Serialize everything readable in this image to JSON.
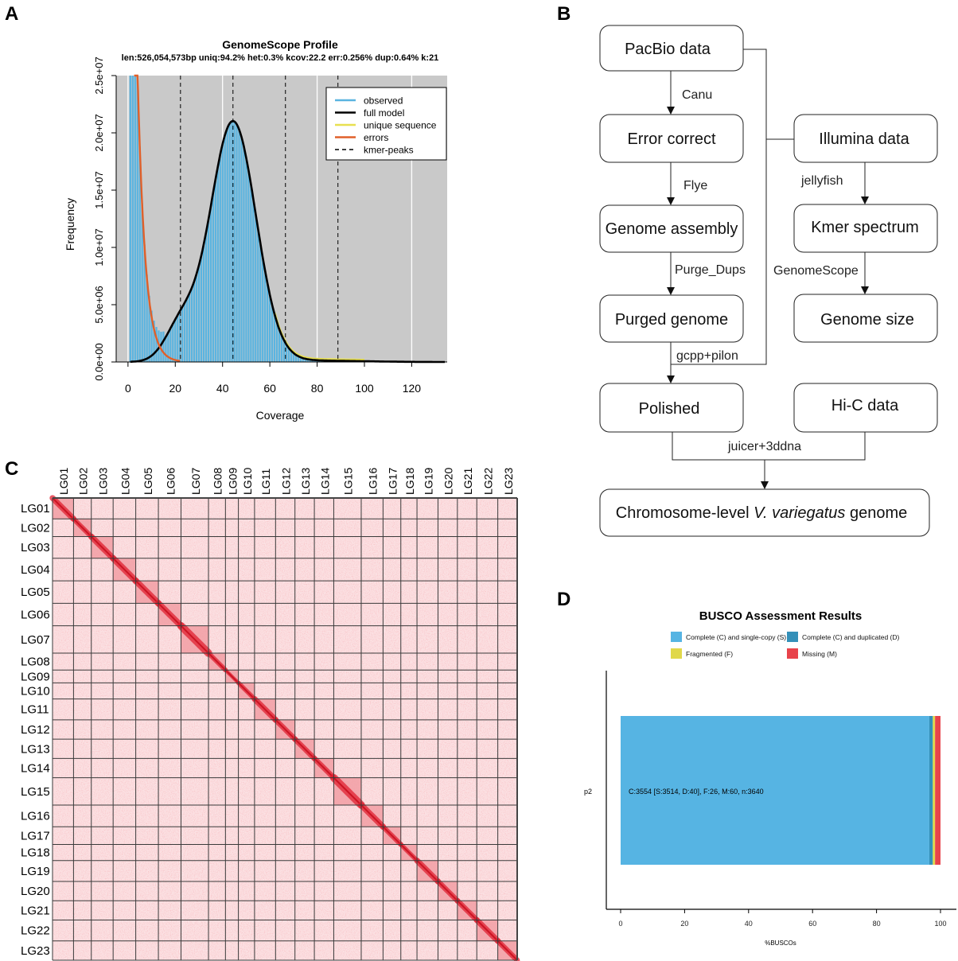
{
  "panels": {
    "a": {
      "label": "A"
    },
    "b": {
      "label": "B"
    },
    "c": {
      "label": "C"
    },
    "d": {
      "label": "D"
    }
  },
  "chart_data": [
    {
      "id": "genomescope",
      "type": "bar",
      "title": "GenomeScope Profile",
      "subtitle": "len:526,054,573bp uniq:94.2%  het:0.3% kcov:22.2 err:0.256%  dup:0.64%  k:21",
      "xlabel": "Coverage",
      "ylabel": "Frequency",
      "xlim": [
        -5,
        135
      ],
      "ylim": [
        0,
        25000000
      ],
      "xticks": [
        0,
        20,
        40,
        60,
        80,
        100,
        120
      ],
      "xtick_labels": [
        "0",
        "20",
        "40",
        "60",
        "80",
        "100",
        "120"
      ],
      "yticks": [
        0,
        5000000,
        10000000,
        15000000,
        20000000,
        25000000
      ],
      "ytick_labels": [
        "0.0e+00",
        "5.0e+06",
        "1.0e+07",
        "1.5e+07",
        "2.0e+07",
        "2.5e+07"
      ],
      "kmer_peaks": [
        22.2,
        44.4,
        66.6,
        88.8
      ],
      "legend": {
        "position": "top-right",
        "items": [
          {
            "label": "observed",
            "color": "#5ab4e0",
            "style": "solid"
          },
          {
            "label": "full model",
            "color": "#000000",
            "style": "solid"
          },
          {
            "label": "unique sequence",
            "color": "#e8e050",
            "style": "solid"
          },
          {
            "label": "errors",
            "color": "#e0602a",
            "style": "solid"
          },
          {
            "label": "kmer-peaks",
            "color": "#000000",
            "style": "dashed"
          }
        ]
      },
      "observed_color": "#5ab4e0",
      "background_color": "#c9c9c9"
    },
    {
      "id": "busco",
      "type": "bar",
      "orientation": "horizontal",
      "stacked": true,
      "title": "BUSCO Assessment Results",
      "xlabel": "%BUSCOs",
      "xlim": [
        0,
        100
      ],
      "xticks": [
        0,
        20,
        40,
        60,
        80,
        100
      ],
      "xtick_labels": [
        "0",
        "20",
        "40",
        "60",
        "80",
        "100"
      ],
      "categories": [
        "p2"
      ],
      "series": [
        {
          "name": "Complete (C) and single-copy (S)",
          "color": "#56b4e3",
          "values": [
            96.5
          ]
        },
        {
          "name": "Complete (C) and duplicated (D)",
          "color": "#3490b9",
          "values": [
            1.1
          ]
        },
        {
          "name": "Fragmented (F)",
          "color": "#e0d84a",
          "values": [
            0.7
          ]
        },
        {
          "name": "Missing (M)",
          "color": "#e8434b",
          "values": [
            1.7
          ]
        }
      ],
      "bar_annotation": "C:3554 [S:3514, D:40], F:26, M:60, n:3640"
    },
    {
      "id": "hic",
      "type": "heatmap",
      "chromosomes": [
        "LG01",
        "LG02",
        "LG03",
        "LG04",
        "LG05",
        "LG06",
        "LG07",
        "LG08",
        "LG09",
        "LG10",
        "LG11",
        "LG12",
        "LG13",
        "LG14",
        "LG15",
        "LG16",
        "LG17",
        "LG18",
        "LG19",
        "LG20",
        "LG21",
        "LG22",
        "LG23"
      ],
      "relative_sizes": [
        26,
        22,
        27,
        28,
        28,
        28,
        34,
        21,
        16,
        20,
        26,
        24,
        24,
        24,
        34,
        27,
        22,
        20,
        26,
        24,
        24,
        26,
        24
      ],
      "low_color": "#f8d0d2",
      "high_color": "#e02030"
    }
  ],
  "workflow": {
    "nodes": {
      "pacbio": "PacBio data",
      "error_correct": "Error correct",
      "genome_assembly": "Genome assembly",
      "purged_genome": "Purged genome",
      "polished": "Polished",
      "illumina": "Illumina data",
      "kmer_spectrum": "Kmer spectrum",
      "genome_size": "Genome size",
      "hic_data": "Hi-C data",
      "final_pre": "Chromosome-level ",
      "final_italic": "V. variegatus",
      "final_post": " genome"
    },
    "edges": {
      "canu": "Canu",
      "flye": "Flye",
      "purge_dups": "Purge_Dups",
      "gcpp_pilon": "gcpp+pilon",
      "jellyfish": "jellyfish",
      "genomescope": "GenomeScope",
      "juicer": "juicer+3ddna"
    }
  }
}
